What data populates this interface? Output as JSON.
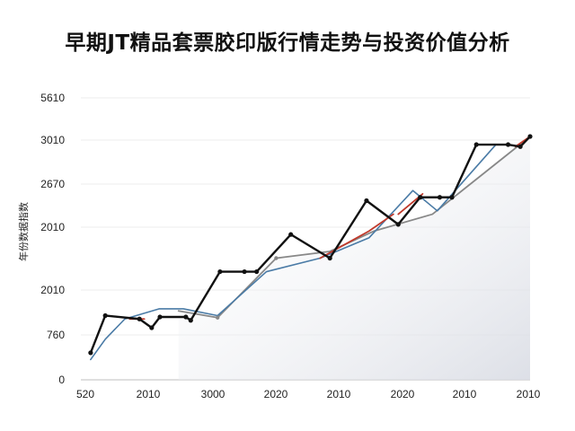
{
  "chart_data": {
    "type": "line",
    "title": "早期JT精品套票胶印版行情走势与投资价值分析",
    "xlabel": "",
    "ylabel": "年份数据指数",
    "y_tick_labels": [
      "0",
      "760",
      "2010",
      "2010",
      "2670",
      "3010",
      "5610"
    ],
    "x_tick_labels": [
      "520",
      "2010",
      "3000",
      "2020",
      "2010",
      "2020",
      "2010",
      "2010"
    ],
    "ylim": [
      0,
      6
    ],
    "grid": true,
    "legend": "none",
    "colors": {
      "main": "#111111",
      "blue": "#4a7ba6",
      "red": "#c0392b",
      "gray": "#888888",
      "area": "#e9ebf0"
    },
    "series": [
      {
        "values": [
          [
            0.2,
            0.4
          ],
          [
            0.5,
            0.95
          ],
          [
            1.2,
            0.9
          ],
          [
            1.45,
            0.77
          ],
          [
            1.62,
            0.93
          ],
          [
            2.15,
            0.93
          ],
          [
            2.25,
            0.88
          ],
          [
            2.85,
            1.6
          ],
          [
            3.35,
            1.6
          ],
          [
            3.6,
            1.6
          ],
          [
            4.3,
            2.15
          ],
          [
            5.1,
            1.8
          ],
          [
            5.85,
            2.65
          ],
          [
            6.5,
            2.3
          ],
          [
            6.95,
            2.7
          ],
          [
            7.35,
            2.7
          ],
          [
            7.6,
            2.7
          ],
          [
            8.1,
            3.48
          ],
          [
            8.75,
            3.48
          ],
          [
            9.0,
            3.45
          ],
          [
            9.2,
            3.6
          ]
        ]
      },
      {
        "values": [
          [
            0.2,
            0.3
          ],
          [
            0.5,
            0.6
          ],
          [
            0.9,
            0.9
          ],
          [
            1.6,
            1.05
          ],
          [
            2.1,
            1.05
          ],
          [
            2.8,
            0.95
          ],
          [
            3.8,
            1.6
          ],
          [
            4.9,
            1.8
          ],
          [
            5.9,
            2.1
          ],
          [
            6.8,
            2.8
          ],
          [
            7.3,
            2.5
          ],
          [
            8.5,
            3.48
          ]
        ]
      },
      {
        "values": [
          [
            1.0,
            0.9
          ],
          [
            1.3,
            0.9
          ]
        ]
      },
      {
        "values": [
          [
            4.9,
            1.8
          ],
          [
            5.9,
            2.2
          ],
          [
            6.1,
            2.3
          ],
          [
            6.4,
            2.45
          ]
        ]
      },
      {
        "values": [
          [
            6.5,
            2.45
          ],
          [
            7.0,
            2.75
          ]
        ]
      },
      {
        "values": [
          [
            8.9,
            3.45
          ],
          [
            9.2,
            3.6
          ]
        ]
      },
      {
        "values": [
          [
            2.0,
            1.02
          ],
          [
            2.8,
            0.92
          ],
          [
            4.0,
            1.8
          ],
          [
            5.1,
            1.9
          ],
          [
            6.0,
            2.2
          ],
          [
            7.2,
            2.45
          ],
          [
            9.2,
            3.6
          ]
        ]
      }
    ]
  }
}
